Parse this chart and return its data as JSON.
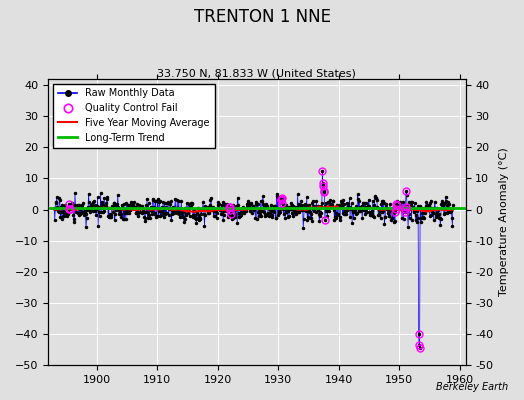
{
  "title": "TRENTON 1 NNE",
  "subtitle": "33.750 N, 81.833 W (United States)",
  "ylabel": "Temperature Anomaly (°C)",
  "watermark": "Berkeley Earth",
  "xlim": [
    1892,
    1961
  ],
  "ylim": [
    -50,
    42
  ],
  "xticks": [
    1900,
    1910,
    1920,
    1930,
    1940,
    1950,
    1960
  ],
  "yticks": [
    -50,
    -40,
    -30,
    -20,
    -10,
    0,
    10,
    20,
    30,
    40
  ],
  "bg_color": "#e0e0e0",
  "grid_color": "#ffffff",
  "seed": 17,
  "n_points": 792,
  "start_year": 1893.0,
  "end_year": 1958.9,
  "anomaly_std": 1.8,
  "moving_avg_color": "#ff0000",
  "trend_color": "#00bb00",
  "data_line_color": "#0000ff",
  "dot_color": "#000000",
  "qc_fail_color": "#ff00ff",
  "spike_down_year": 1953.2,
  "spike_down_val1": -40.0,
  "spike_down_val2": -43.5,
  "spike_down_val3": -44.5,
  "spike_up_year": 1937.3,
  "spike_up_vals": [
    12.5,
    8.5,
    7.5,
    6.0,
    5.5,
    -3.5
  ],
  "extra_qc_year1": 1895.5,
  "extra_qc_year2": 1922.0,
  "extra_qc_year3": 1930.5,
  "extra_qc_year4": 1949.5,
  "extra_qc_year5": 1951.0
}
